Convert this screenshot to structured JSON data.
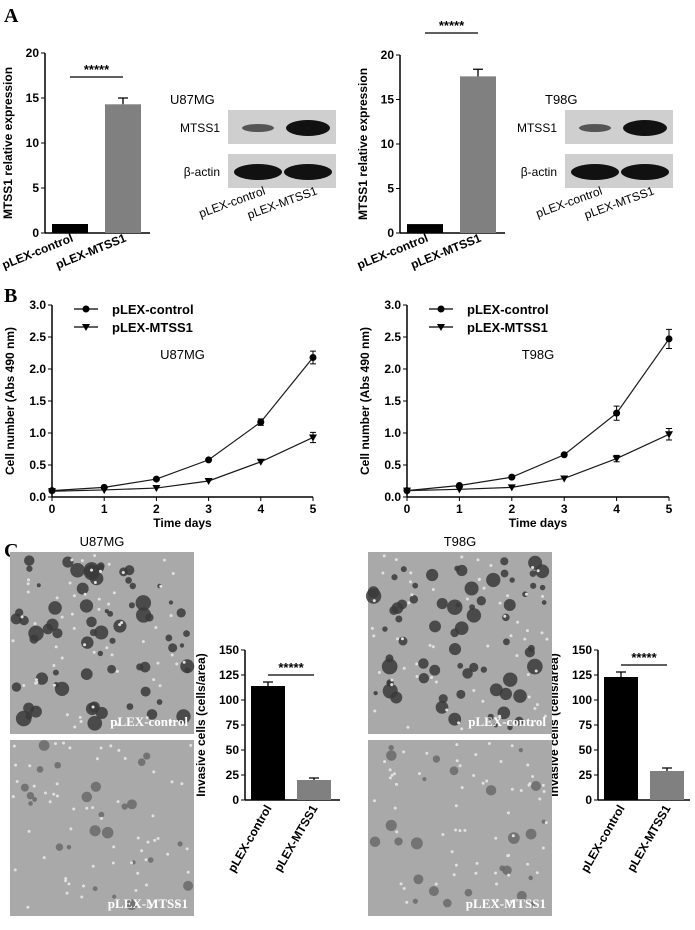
{
  "panel_labels": [
    "A",
    "B",
    "C"
  ],
  "colors": {
    "control": "#000000",
    "mtss1": "#808080",
    "line": "#1a1a1a"
  },
  "blots": [
    {
      "cell_line": "U87MG",
      "rows": [
        "MTSS1",
        "β-actin"
      ],
      "lanes": [
        "pLEX-control",
        "pLEX-MTSS1"
      ]
    },
    {
      "cell_line": "T98G",
      "rows": [
        "MTSS1",
        "β-actin"
      ],
      "lanes": [
        "pLEX-control",
        "pLEX-MTSS1"
      ]
    }
  ],
  "micrographs": [
    {
      "cell_line": "U87MG",
      "top_label": "pLEX-control",
      "bottom_label": "pLEX-MTSS1"
    },
    {
      "cell_line": "T98G",
      "top_label": "pLEX-control",
      "bottom_label": "pLEX-MTSS1"
    }
  ],
  "chart_data": [
    {
      "type": "bar",
      "panel": "A",
      "cell_line": "U87MG",
      "categories": [
        "pLEX-control",
        "pLEX-MTSS1"
      ],
      "values": [
        1,
        14.3
      ],
      "errors": [
        0,
        0.7
      ],
      "ylabel": "MTSS1 relative expression",
      "ylim": [
        0,
        20
      ],
      "yticks": [
        "0",
        "5",
        "10",
        "15",
        "20"
      ],
      "significance": "*****"
    },
    {
      "type": "bar",
      "panel": "A",
      "cell_line": "T98G",
      "categories": [
        "pLEX-control",
        "pLEX-MTSS1"
      ],
      "values": [
        1,
        17.6
      ],
      "errors": [
        0,
        0.8
      ],
      "ylabel": "MTSS1 relative expression",
      "ylim": [
        0,
        20
      ],
      "yticks": [
        "0",
        "5",
        "10",
        "15",
        "20"
      ],
      "significance": "*****"
    },
    {
      "type": "line",
      "panel": "B",
      "cell_line": "U87MG",
      "x": [
        0,
        1,
        2,
        3,
        4,
        5
      ],
      "xlabel": "Time days",
      "ylabel": "Cell number (Abs 490 nm)",
      "ylim": [
        0,
        3
      ],
      "xlim": [
        0,
        5
      ],
      "xticks": [
        "0",
        "1",
        "2",
        "3",
        "4",
        "5"
      ],
      "yticks": [
        "0.0",
        "0.5",
        "1.0",
        "1.5",
        "2.0",
        "2.5",
        "3.0"
      ],
      "legend_position": "top-left",
      "series": [
        {
          "name": "pLEX-control",
          "marker": "circle",
          "values": [
            0.1,
            0.15,
            0.28,
            0.58,
            1.17,
            2.18
          ],
          "errors": [
            0.02,
            0.02,
            0.02,
            0.02,
            0.05,
            0.1
          ]
        },
        {
          "name": "pLEX-MTSS1",
          "marker": "triangle-down",
          "values": [
            0.09,
            0.11,
            0.14,
            0.25,
            0.55,
            0.93
          ],
          "errors": [
            0.01,
            0.01,
            0.01,
            0.02,
            0.02,
            0.08
          ]
        }
      ]
    },
    {
      "type": "line",
      "panel": "B",
      "cell_line": "T98G",
      "x": [
        0,
        1,
        2,
        3,
        4,
        5
      ],
      "xlabel": "Time days",
      "ylabel": "Cell number (Abs 490 nm)",
      "ylim": [
        0,
        3
      ],
      "xlim": [
        0,
        5
      ],
      "xticks": [
        "0",
        "1",
        "2",
        "3",
        "4",
        "5"
      ],
      "yticks": [
        "0.0",
        "0.5",
        "1.0",
        "1.5",
        "2.0",
        "2.5",
        "3.0"
      ],
      "legend_position": "top-left",
      "series": [
        {
          "name": "pLEX-control",
          "marker": "circle",
          "values": [
            0.1,
            0.18,
            0.31,
            0.66,
            1.31,
            2.47
          ],
          "errors": [
            0.02,
            0.02,
            0.02,
            0.02,
            0.11,
            0.15
          ]
        },
        {
          "name": "pLEX-MTSS1",
          "marker": "triangle-down",
          "values": [
            0.1,
            0.12,
            0.15,
            0.29,
            0.6,
            0.98
          ],
          "errors": [
            0.01,
            0.01,
            0.01,
            0.02,
            0.05,
            0.09
          ]
        }
      ]
    },
    {
      "type": "bar",
      "panel": "C",
      "cell_line": "U87MG",
      "categories": [
        "pLEX-control",
        "pLEX-MTSS1"
      ],
      "values": [
        114,
        20
      ],
      "errors": [
        4,
        2
      ],
      "ylabel": "Invasive cells (cells/area)",
      "ylim": [
        0,
        150
      ],
      "yticks": [
        "0",
        "25",
        "50",
        "75",
        "100",
        "125",
        "150"
      ],
      "significance": "*****"
    },
    {
      "type": "bar",
      "panel": "C",
      "cell_line": "T98G",
      "categories": [
        "pLEX-control",
        "pLEX-MTSS1"
      ],
      "values": [
        123,
        29
      ],
      "errors": [
        5,
        3
      ],
      "ylabel": "Invasive cells (cells/area)",
      "ylim": [
        0,
        150
      ],
      "yticks": [
        "0",
        "25",
        "50",
        "75",
        "100",
        "125",
        "150"
      ],
      "significance": "*****"
    }
  ]
}
